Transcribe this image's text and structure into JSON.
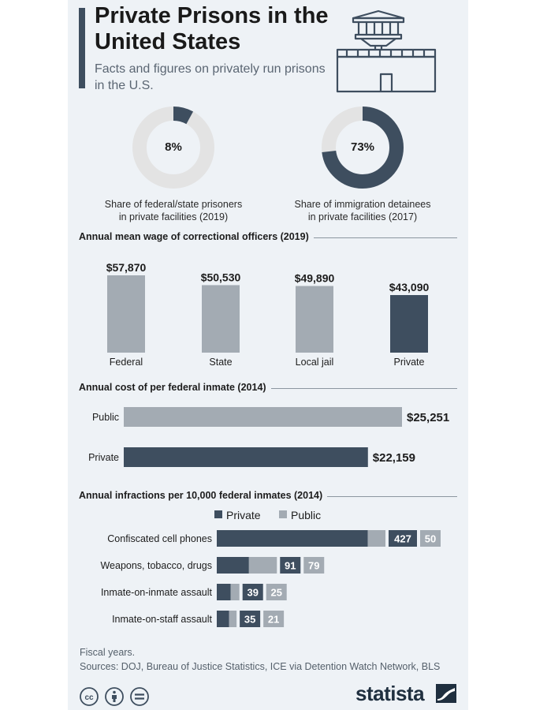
{
  "header": {
    "title": "Private Prisons in the United States",
    "subtitle": "Facts and figures on privately run prisons in the U.S."
  },
  "colors": {
    "private": "#3e4e5f",
    "public": "#a3abb3",
    "track": "#e3e3e3",
    "accent": "#3e4e5f"
  },
  "icons": [
    "prison-building-icon",
    "cc-icon",
    "by-icon",
    "nd-icon",
    "statista-logo-icon"
  ],
  "donuts": [
    {
      "value": 8,
      "label": "8%",
      "caption": "Share of federal/state prisoners\nin private facilities (2019)"
    },
    {
      "value": 73,
      "label": "73%",
      "caption": "Share of immigration detainees\nin private facilities (2017)"
    }
  ],
  "sections": {
    "wages": "Annual mean wage of correctional officers (2019)",
    "cost": "Annual cost of per federal inmate (2014)",
    "infractions": "Annual infractions per 10,000 federal inmates (2014)"
  },
  "chart_data": [
    {
      "type": "bar",
      "title": "Annual mean wage of correctional officers (2019)",
      "categories": [
        "Federal",
        "State",
        "Local jail",
        "Private"
      ],
      "values": [
        57870,
        50530,
        49890,
        43090
      ],
      "value_labels": [
        "$57,870",
        "$50,530",
        "$49,890",
        "$43,090"
      ],
      "highlight": [
        "public",
        "public",
        "public",
        "private"
      ]
    },
    {
      "type": "bar",
      "orientation": "horizontal",
      "title": "Annual cost of per federal inmate (2014)",
      "categories": [
        "Public",
        "Private"
      ],
      "values": [
        25251,
        22159
      ],
      "value_labels": [
        "$25,251",
        "$22,159"
      ],
      "highlight": [
        "public",
        "private"
      ]
    },
    {
      "type": "bar",
      "orientation": "horizontal",
      "stacked": true,
      "title": "Annual infractions per 10,000 federal inmates (2014)",
      "legend": [
        "Private",
        "Public"
      ],
      "categories": [
        "Confiscated cell phones",
        "Weapons, tobacco, drugs",
        "Inmate-on-inmate assault",
        "Inmate-on-staff assault"
      ],
      "series": [
        {
          "name": "Private",
          "values": [
            427,
            91,
            39,
            35
          ]
        },
        {
          "name": "Public",
          "values": [
            50,
            79,
            25,
            21
          ]
        }
      ]
    }
  ],
  "footer": {
    "note": "Fiscal years.",
    "sources": "Sources: DOJ, Bureau of Justice Statistics, ICE via Detention Watch Network, BLS",
    "brand": "statista"
  }
}
